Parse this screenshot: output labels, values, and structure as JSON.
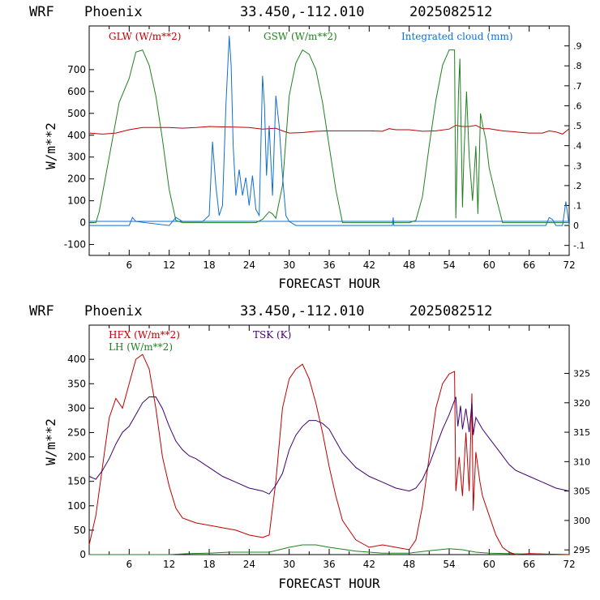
{
  "charts": [
    {
      "header": {
        "model": "WRF",
        "location": "Phoenix",
        "coords": "33.450,-112.010",
        "init": "2025082512"
      },
      "xlabel": "FORECAST HOUR",
      "ylabel": "W/m**2",
      "legend": {
        "glw": "GLW (W/m**2)",
        "gsw": "GSW (W/m**2)",
        "cloud": "Integrated cloud (mm)"
      },
      "left_ticks": [
        "-100",
        "0",
        "100",
        "200",
        "300",
        "400",
        "500",
        "600",
        "700"
      ],
      "right_ticks": [
        "-.1",
        "0",
        ".1",
        ".2",
        ".3",
        ".4",
        ".5",
        ".6",
        ".7",
        ".8",
        ".9"
      ],
      "x_ticks": [
        "6",
        "12",
        "18",
        "24",
        "30",
        "36",
        "42",
        "48",
        "54",
        "60",
        "66",
        "72"
      ]
    },
    {
      "header": {
        "model": "WRF",
        "location": "Phoenix",
        "coords": "33.450,-112.010",
        "init": "2025082512"
      },
      "xlabel": "FORECAST HOUR",
      "ylabel": "W/m**2",
      "legend": {
        "hfx": "HFX (W/m**2)",
        "lh": "LH (W/m**2)",
        "tsk": "TSK (K)"
      },
      "left_ticks": [
        "0",
        "50",
        "100",
        "150",
        "200",
        "250",
        "300",
        "350",
        "400"
      ],
      "right_ticks": [
        "295",
        "300",
        "305",
        "310",
        "315",
        "320",
        "325"
      ],
      "x_ticks": [
        "6",
        "12",
        "18",
        "24",
        "30",
        "36",
        "42",
        "48",
        "54",
        "60",
        "66",
        "72"
      ]
    }
  ],
  "colors": {
    "glw": "#c00000",
    "gsw": "#208020",
    "cloud": "#1070d0",
    "hfx": "#c00000",
    "lh": "#208020",
    "tsk": "#400070"
  },
  "chart_data": [
    {
      "type": "line",
      "title": "WRF Phoenix 33.450,-112.010 2025082512",
      "xlabel": "FORECAST HOUR",
      "ylabel": "W/m**2",
      "xlim": [
        0,
        72
      ],
      "ylim": [
        -150,
        900
      ],
      "y2lim": [
        -0.15,
        1.0
      ],
      "series": [
        {
          "name": "GLW (W/m**2)",
          "axis": "left",
          "x": [
            0,
            2,
            4,
            6,
            8,
            10,
            12,
            14,
            16,
            18,
            20,
            22,
            24,
            26,
            28,
            29,
            30,
            32,
            34,
            36,
            38,
            40,
            42,
            44,
            45,
            46,
            48,
            50,
            52,
            54,
            55,
            56,
            57,
            58,
            59,
            60,
            62,
            64,
            66,
            68,
            69,
            70,
            71,
            72
          ],
          "y": [
            410,
            405,
            410,
            425,
            435,
            435,
            435,
            432,
            435,
            440,
            438,
            437,
            435,
            428,
            432,
            420,
            410,
            412,
            418,
            420,
            420,
            420,
            420,
            418,
            430,
            425,
            425,
            418,
            420,
            428,
            445,
            440,
            440,
            445,
            430,
            430,
            420,
            415,
            410,
            410,
            420,
            415,
            405,
            430
          ]
        },
        {
          "name": "GSW (W/m**2)",
          "axis": "left",
          "x": [
            0,
            1,
            1.5,
            3,
            4.5,
            6,
            7,
            8,
            9,
            10,
            11,
            12,
            13,
            14,
            24,
            25,
            26,
            27,
            27.5,
            28,
            29,
            29.5,
            30,
            31,
            32,
            33,
            34,
            35,
            36,
            37,
            38,
            48,
            49,
            50,
            51,
            52,
            53,
            54,
            54.8,
            55,
            55.4,
            55.6,
            56,
            56.2,
            56.6,
            57,
            57.5,
            58,
            58.3,
            58.7,
            59,
            59.5,
            60,
            61,
            62,
            72
          ],
          "y": [
            0,
            0,
            50,
            300,
            550,
            660,
            780,
            790,
            720,
            580,
            380,
            150,
            10,
            0,
            0,
            0,
            15,
            50,
            40,
            20,
            170,
            380,
            580,
            730,
            790,
            770,
            700,
            550,
            350,
            150,
            0,
            0,
            10,
            120,
            350,
            560,
            720,
            790,
            790,
            20,
            600,
            750,
            70,
            300,
            600,
            300,
            100,
            350,
            40,
            500,
            450,
            380,
            250,
            120,
            0,
            0
          ]
        },
        {
          "name": "Integrated cloud (mm)",
          "axis": "right",
          "x": [
            0,
            6,
            6.5,
            7,
            12,
            13,
            14,
            17,
            18,
            18.5,
            19,
            19.5,
            20,
            20.5,
            21,
            21.3,
            21.6,
            22,
            22.5,
            23,
            23.5,
            24,
            24.5,
            25,
            25.5,
            26,
            26.3,
            26.6,
            27,
            27.5,
            28,
            28.5,
            29,
            29.5,
            30,
            31,
            45.5,
            45.6,
            45.7,
            46,
            68.5,
            69,
            69.5,
            70,
            71,
            71.5,
            72
          ],
          "y": [
            0,
            0,
            0.04,
            0.02,
            0,
            0.04,
            0.02,
            0.02,
            0.05,
            0.42,
            0.2,
            0.05,
            0.1,
            0.6,
            0.95,
            0.8,
            0.4,
            0.15,
            0.28,
            0.15,
            0.24,
            0.1,
            0.25,
            0.08,
            0.05,
            0.75,
            0.6,
            0.25,
            0.5,
            0.15,
            0.65,
            0.5,
            0.25,
            0.05,
            0.02,
            0,
            0,
            0.04,
            0,
            0,
            0,
            0.04,
            0.03,
            0,
            0,
            0.12,
            0
          ]
        }
      ]
    },
    {
      "type": "line",
      "title": "WRF Phoenix 33.450,-112.010 2025082512",
      "xlabel": "FORECAST HOUR",
      "ylabel": "W/m**2",
      "xlim": [
        0,
        72
      ],
      "ylim": [
        0,
        470
      ],
      "y2lim": [
        294.2,
        333.2
      ],
      "series": [
        {
          "name": "HFX (W/m**2)",
          "axis": "left",
          "x": [
            0,
            1,
            2,
            3,
            4,
            5,
            6,
            7,
            8,
            9,
            10,
            11,
            12,
            13,
            14,
            15,
            16,
            18,
            20,
            22,
            24,
            26,
            27,
            28,
            29,
            30,
            31,
            32,
            33,
            34,
            35,
            36,
            37,
            38,
            40,
            42,
            44,
            46,
            48,
            49,
            50,
            51,
            52,
            53,
            54,
            54.8,
            55,
            55.5,
            56,
            56.5,
            57,
            57.4,
            57.6,
            58,
            58.3,
            58.6,
            59,
            60,
            61,
            62,
            63,
            64,
            66,
            72
          ],
          "y": [
            20,
            80,
            180,
            280,
            320,
            300,
            350,
            400,
            410,
            380,
            300,
            200,
            140,
            95,
            75,
            70,
            65,
            60,
            55,
            50,
            40,
            35,
            40,
            150,
            300,
            360,
            380,
            390,
            360,
            310,
            250,
            180,
            120,
            70,
            30,
            15,
            20,
            15,
            10,
            30,
            100,
            200,
            300,
            350,
            370,
            375,
            130,
            200,
            120,
            250,
            130,
            330,
            90,
            210,
            180,
            150,
            120,
            80,
            40,
            15,
            5,
            0,
            2,
            0
          ]
        },
        {
          "name": "LH (W/m**2)",
          "axis": "left",
          "x": [
            0,
            12,
            15,
            18,
            21,
            24,
            27,
            30,
            32,
            34,
            36,
            40,
            44,
            48,
            51,
            54,
            56,
            58,
            60,
            63,
            66,
            72
          ],
          "y": [
            0,
            0,
            2,
            3,
            5,
            5,
            5,
            15,
            20,
            20,
            15,
            7,
            3,
            3,
            8,
            12,
            10,
            5,
            3,
            2,
            1,
            0
          ]
        },
        {
          "name": "TSK (K)",
          "axis": "right",
          "x": [
            0,
            1,
            2,
            3,
            4,
            5,
            6,
            7,
            8,
            9,
            10,
            11,
            12,
            13,
            14,
            15,
            16,
            18,
            20,
            22,
            24,
            26,
            27,
            28,
            29,
            30,
            31,
            32,
            33,
            34,
            35,
            36,
            37,
            38,
            40,
            42,
            44,
            46,
            48,
            49,
            50,
            51,
            52,
            53,
            54,
            55,
            55.3,
            55.7,
            56,
            56.5,
            57,
            57.4,
            57.6,
            58,
            58.5,
            59,
            60,
            61,
            62,
            63,
            64,
            66,
            68,
            70,
            72
          ],
          "y": [
            307.5,
            307,
            308.5,
            310.5,
            313,
            315,
            316,
            318,
            320,
            321,
            321,
            319,
            316,
            313.5,
            312,
            311,
            310.5,
            309,
            307.5,
            306.5,
            305.5,
            305,
            304.5,
            306,
            308,
            312,
            314.5,
            316,
            317,
            317,
            316.5,
            315.5,
            313.5,
            311.5,
            309,
            307.5,
            306.5,
            305.5,
            305,
            305.5,
            307,
            309.5,
            312.5,
            315.5,
            318,
            321,
            316,
            319.5,
            315.5,
            319,
            315,
            320,
            314.5,
            317.5,
            316.5,
            315.5,
            314,
            312.5,
            311,
            309.5,
            308.5,
            307.5,
            306.5,
            305.5,
            305
          ]
        }
      ]
    }
  ]
}
